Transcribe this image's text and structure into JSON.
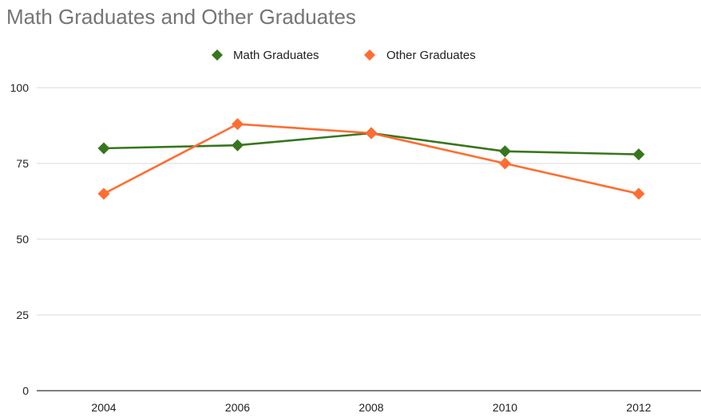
{
  "chart_data": {
    "type": "line",
    "title": "Math Graduates and Other Graduates",
    "xlabel": "",
    "ylabel": "",
    "categories": [
      "2004",
      "2006",
      "2008",
      "2010",
      "2012"
    ],
    "ylim": [
      0,
      100
    ],
    "yticks": [
      0,
      25,
      50,
      75,
      100
    ],
    "grid": true,
    "legend_position": "top",
    "marker": "diamond",
    "series": [
      {
        "name": "Math Graduates",
        "color": "#38761d",
        "values": [
          80,
          81,
          85,
          79,
          78
        ]
      },
      {
        "name": "Other Graduates",
        "color": "#ff6d31",
        "values": [
          65,
          88,
          85,
          75,
          65
        ]
      }
    ]
  }
}
